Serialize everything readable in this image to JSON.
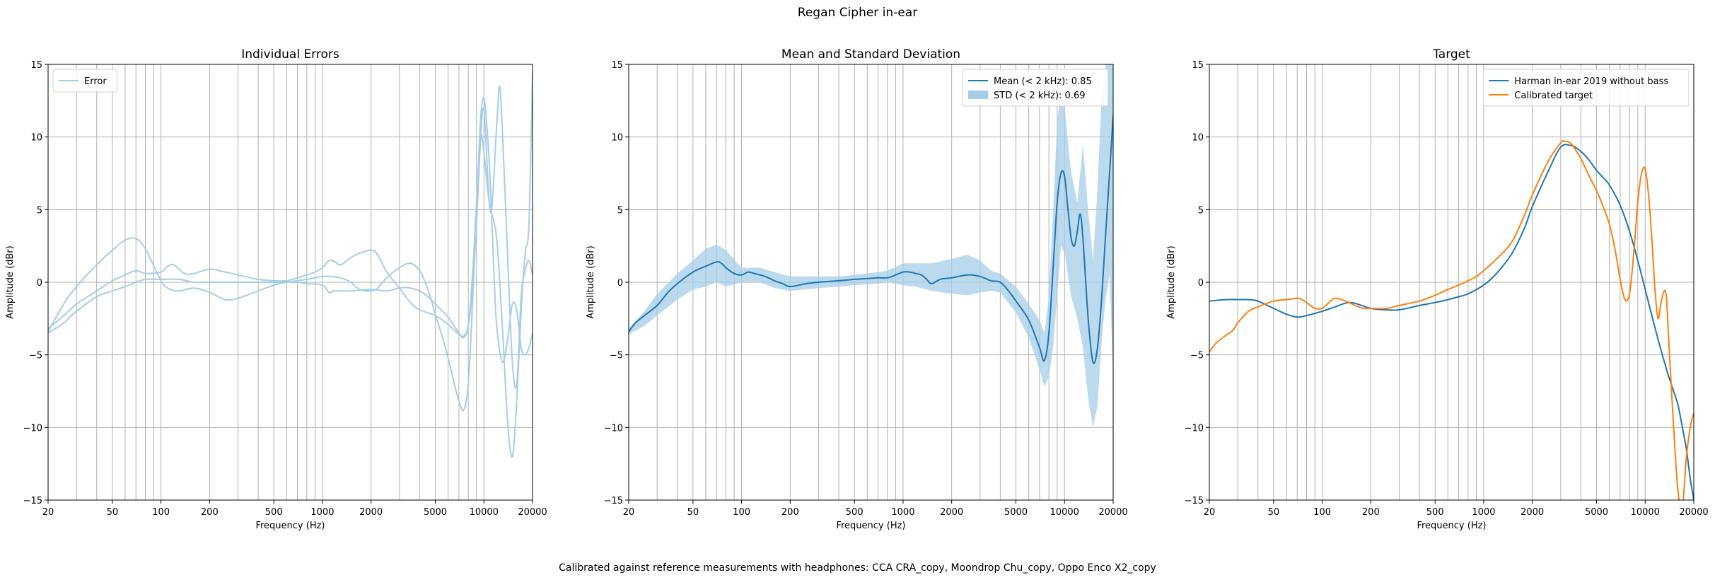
{
  "figure": {
    "title": "Regan Cipher in-ear",
    "footer": "Calibrated against reference measurements with headphones: CCA CRA_copy, Moondrop Chu_copy, Oppo Enco X2_copy"
  },
  "chart_data": [
    {
      "type": "line",
      "title": "Individual Errors",
      "xlabel": "Frequency (Hz)",
      "ylabel": "Amplitude (dBr)",
      "xscale": "log",
      "xlim": [
        20,
        20000
      ],
      "ylim": [
        -15,
        15
      ],
      "xticks": [
        20,
        50,
        100,
        200,
        500,
        1000,
        2000,
        5000,
        10000,
        20000
      ],
      "yticks": [
        -15,
        -10,
        -5,
        0,
        5,
        10,
        15
      ],
      "ytick_labels": [
        "−15",
        "−10",
        "−5",
        "0",
        "5",
        "10",
        "15"
      ],
      "grid": true,
      "legend": {
        "position": "top-left",
        "entries": [
          {
            "label": "Error",
            "color": "#a6cde8",
            "kind": "line"
          }
        ]
      },
      "series": [
        {
          "color": "#a6cde8",
          "x": [
            20,
            25,
            30,
            40,
            50,
            60,
            70,
            80,
            100,
            110,
            130,
            160,
            200,
            250,
            300,
            400,
            500,
            600,
            700,
            800,
            900,
            1000,
            1100,
            1300,
            1500,
            1700,
            2000,
            2200,
            2500,
            3000,
            3500,
            4000,
            4500,
            5000,
            5500,
            6000,
            6500,
            7000,
            7500,
            8000,
            8500,
            9000,
            9500,
            10000,
            10500,
            11000,
            11500,
            12000,
            13000,
            14000,
            15000,
            16000,
            17000,
            18000,
            19000,
            20000
          ],
          "y": [
            -3.4,
            -1.5,
            -0.3,
            1.2,
            2.2,
            2.9,
            3.0,
            2.3,
            0.1,
            -0.4,
            -0.6,
            -0.4,
            -0.7,
            -1.2,
            -1.1,
            -0.6,
            -0.2,
            0.0,
            0.1,
            0.2,
            0.3,
            0.4,
            0.4,
            0.3,
            0.0,
            -0.5,
            -0.6,
            -0.4,
            0.3,
            1.0,
            1.3,
            0.8,
            -0.5,
            -2.2,
            -3.7,
            -5.2,
            -6.8,
            -8.2,
            -8.8,
            -7.0,
            -1.5,
            4.8,
            11.0,
            12.7,
            10.3,
            6.4,
            1.0,
            -3.0,
            -5.5,
            -4.0,
            -1.5,
            -2.0,
            -4.5,
            -5.0,
            -4.5,
            -3.5
          ]
        },
        {
          "color": "#a6cde8",
          "x": [
            20,
            25,
            30,
            40,
            50,
            60,
            70,
            80,
            100,
            110,
            120,
            140,
            160,
            200,
            250,
            300,
            400,
            500,
            600,
            700,
            800,
            900,
            1000,
            1100,
            1200,
            1300,
            1500,
            1700,
            2000,
            2200,
            2500,
            3000,
            3500,
            4000,
            5000,
            6000,
            7000,
            7500,
            8000,
            8500,
            9000,
            9500,
            10000,
            11000,
            12000,
            12500,
            13000,
            14000,
            15000,
            16000,
            17000,
            18000,
            19000,
            20000
          ],
          "y": [
            -3.2,
            -2.3,
            -1.5,
            -0.6,
            0.1,
            0.5,
            0.8,
            0.6,
            0.7,
            1.1,
            1.2,
            0.6,
            0.6,
            0.9,
            0.7,
            0.5,
            0.2,
            0.1,
            0.1,
            0.3,
            0.5,
            0.7,
            1.0,
            1.5,
            1.4,
            1.2,
            1.7,
            2.0,
            2.2,
            1.9,
            0.7,
            -0.4,
            -1.4,
            -1.9,
            -2.3,
            -2.9,
            -3.6,
            -3.7,
            -3.0,
            -0.5,
            4.0,
            9.5,
            11.8,
            4.8,
            10.8,
            13.5,
            10.5,
            2.0,
            -5.5,
            -7.0,
            -1.0,
            0.8,
            1.5,
            0.5
          ]
        },
        {
          "color": "#a6cde8",
          "x": [
            20,
            25,
            30,
            40,
            50,
            60,
            70,
            80,
            100,
            130,
            160,
            200,
            300,
            400,
            500,
            600,
            700,
            800,
            1000,
            1100,
            1200,
            1500,
            2000,
            2500,
            3000,
            3500,
            4000,
            4500,
            5000,
            6000,
            7000,
            7500,
            8000,
            8500,
            9000,
            9500,
            10000,
            10500,
            11000,
            12000,
            13000,
            14000,
            15000,
            16000,
            17000,
            18000,
            19000,
            20000
          ],
          "y": [
            -3.5,
            -2.8,
            -2.0,
            -1.0,
            -0.6,
            -0.3,
            0.0,
            0.2,
            0.2,
            0.2,
            0.0,
            0.0,
            0.0,
            0.0,
            0.0,
            0.0,
            0.0,
            -0.1,
            -0.2,
            -0.7,
            -0.6,
            -0.6,
            -0.5,
            -0.6,
            -0.4,
            -0.4,
            -0.6,
            -1.0,
            -1.5,
            -2.4,
            -3.5,
            -3.8,
            -3.0,
            0.5,
            5.5,
            10.0,
            9.0,
            6.5,
            5.0,
            3.0,
            -3.0,
            -9.5,
            -12.0,
            -8.0,
            -2.0,
            2.0,
            4.0,
            14.5
          ]
        }
      ]
    },
    {
      "type": "line",
      "title": "Mean and Standard Deviation",
      "xlabel": "Frequency (Hz)",
      "ylabel": "Amplitude (dBr)",
      "xscale": "log",
      "xlim": [
        20,
        20000
      ],
      "ylim": [
        -15,
        15
      ],
      "xticks": [
        20,
        50,
        100,
        200,
        500,
        1000,
        2000,
        5000,
        10000,
        20000
      ],
      "yticks": [
        -15,
        -10,
        -5,
        0,
        5,
        10,
        15
      ],
      "ytick_labels": [
        "−15",
        "−10",
        "−5",
        "0",
        "5",
        "10",
        "15"
      ],
      "grid": true,
      "legend": {
        "position": "top-right",
        "entries": [
          {
            "label": "Mean (< 2 kHz): 0.85",
            "color": "#1f77b4",
            "kind": "line"
          },
          {
            "label": "STD (< 2 kHz): 0.69",
            "color": "#a6cde8",
            "kind": "patch"
          }
        ]
      },
      "series": [
        {
          "name": "Mean (< 2 kHz): 0.85",
          "color": "#1f77b4",
          "x": [
            20,
            22,
            25,
            30,
            35,
            40,
            50,
            60,
            70,
            75,
            80,
            90,
            100,
            110,
            120,
            140,
            160,
            180,
            200,
            250,
            300,
            400,
            500,
            600,
            700,
            800,
            900,
            1000,
            1100,
            1200,
            1300,
            1400,
            1500,
            1700,
            2000,
            2500,
            3000,
            3500,
            4000,
            4500,
            5000,
            6000,
            7000,
            7500,
            8000,
            8500,
            9000,
            9500,
            10000,
            10500,
            11000,
            11500,
            12000,
            12500,
            13000,
            14000,
            15000,
            16000,
            17000,
            18000,
            19000,
            20000
          ],
          "y": [
            -3.4,
            -2.8,
            -2.3,
            -1.6,
            -0.7,
            -0.1,
            0.7,
            1.1,
            1.4,
            1.3,
            1.0,
            0.6,
            0.5,
            0.7,
            0.6,
            0.4,
            0.1,
            -0.1,
            -0.3,
            -0.1,
            0.0,
            0.1,
            0.2,
            0.25,
            0.3,
            0.3,
            0.5,
            0.7,
            0.7,
            0.6,
            0.5,
            0.2,
            -0.1,
            0.2,
            0.3,
            0.5,
            0.4,
            0.1,
            0.0,
            -0.6,
            -1.3,
            -2.6,
            -4.5,
            -5.4,
            -3.5,
            1.0,
            5.5,
            7.5,
            7.3,
            5.0,
            3.0,
            2.5,
            3.5,
            4.7,
            3.0,
            -2.5,
            -5.5,
            -4.5,
            -1.0,
            3.5,
            7.5,
            11.5
          ]
        },
        {
          "name": "STD (< 2 kHz): 0.69",
          "type": "band",
          "color": "#a6cde8",
          "x": [
            20,
            25,
            30,
            40,
            50,
            60,
            70,
            80,
            100,
            130,
            160,
            200,
            300,
            400,
            500,
            700,
            800,
            1000,
            1200,
            1500,
            2000,
            2500,
            3000,
            3500,
            4000,
            5000,
            6000,
            7000,
            7500,
            8000,
            8500,
            9000,
            9500,
            10000,
            11000,
            12000,
            13000,
            14000,
            15000,
            16000,
            17000,
            18000,
            19000,
            20000
          ],
          "lower": [
            -3.6,
            -3.0,
            -2.3,
            -1.2,
            -0.5,
            -0.3,
            0.0,
            -0.3,
            0.0,
            0.0,
            -0.4,
            -0.6,
            -0.4,
            -0.3,
            -0.2,
            -0.1,
            0.0,
            -0.2,
            -0.3,
            -0.6,
            -0.8,
            -0.9,
            -0.7,
            -0.6,
            -0.7,
            -2.1,
            -3.8,
            -6.0,
            -7.2,
            -6.5,
            -4.5,
            -1.0,
            2.5,
            2.0,
            -1.0,
            -2.5,
            -4.5,
            -8.0,
            -10.0,
            -8.5,
            -4.0,
            -1.0,
            0.5,
            -6.5
          ],
          "upper": [
            -3.2,
            -2.0,
            -0.8,
            0.6,
            1.5,
            2.3,
            2.6,
            2.2,
            1.0,
            1.0,
            0.7,
            0.4,
            0.4,
            0.4,
            0.5,
            0.7,
            0.8,
            1.3,
            1.3,
            1.3,
            1.6,
            1.9,
            1.5,
            0.8,
            0.6,
            -0.3,
            -1.5,
            -2.6,
            -3.5,
            -1.0,
            5.0,
            11.0,
            13.5,
            12.0,
            7.5,
            5.5,
            9.5,
            5.0,
            1.5,
            6.5,
            13.0,
            15.0,
            15.0,
            15.0
          ]
        }
      ]
    },
    {
      "type": "line",
      "title": "Target",
      "xlabel": "Frequency (Hz)",
      "ylabel": "Amplitude (dBr)",
      "xscale": "log",
      "xlim": [
        20,
        20000
      ],
      "ylim": [
        -15,
        15
      ],
      "xticks": [
        20,
        50,
        100,
        200,
        500,
        1000,
        2000,
        5000,
        10000,
        20000
      ],
      "yticks": [
        -15,
        -10,
        -5,
        0,
        5,
        10,
        15
      ],
      "ytick_labels": [
        "−15",
        "−10",
        "−5",
        "0",
        "5",
        "10",
        "15"
      ],
      "grid": true,
      "legend": {
        "position": "top-right",
        "entries": [
          {
            "label": "Harman in-ear 2019 without bass",
            "color": "#1f77b4",
            "kind": "line"
          },
          {
            "label": "Calibrated target",
            "color": "#ff7f0e",
            "kind": "line"
          }
        ]
      },
      "series": [
        {
          "name": "Harman in-ear 2019 without bass",
          "color": "#1f77b4",
          "x": [
            20,
            25,
            30,
            35,
            40,
            50,
            60,
            70,
            80,
            100,
            120,
            150,
            200,
            250,
            300,
            400,
            500,
            600,
            700,
            800,
            1000,
            1200,
            1500,
            1800,
            2000,
            2500,
            3000,
            3500,
            4000,
            4500,
            5000,
            5500,
            6000,
            7000,
            8000,
            9000,
            10000,
            11000,
            12000,
            13000,
            14000,
            15000,
            16000,
            17000,
            18000,
            19000,
            20000
          ],
          "y": [
            -1.3,
            -1.2,
            -1.2,
            -1.2,
            -1.3,
            -1.8,
            -2.2,
            -2.4,
            -2.3,
            -2.0,
            -1.7,
            -1.4,
            -1.8,
            -1.9,
            -1.9,
            -1.6,
            -1.4,
            -1.2,
            -1.0,
            -0.8,
            -0.2,
            0.6,
            2.0,
            3.8,
            5.2,
            7.6,
            9.3,
            9.4,
            9.0,
            8.4,
            7.7,
            7.2,
            6.7,
            5.3,
            3.5,
            1.5,
            -0.5,
            -2.3,
            -3.9,
            -5.3,
            -6.5,
            -7.5,
            -8.5,
            -10.0,
            -11.5,
            -13.5,
            -15.0
          ]
        },
        {
          "name": "Calibrated target",
          "color": "#ff7f0e",
          "x": [
            20,
            22,
            25,
            28,
            30,
            35,
            40,
            50,
            60,
            70,
            75,
            80,
            90,
            100,
            110,
            120,
            140,
            160,
            180,
            200,
            250,
            300,
            400,
            500,
            600,
            700,
            800,
            900,
            1000,
            1200,
            1500,
            1800,
            2000,
            2500,
            3000,
            3200,
            3500,
            4000,
            4500,
            5000,
            5500,
            6000,
            6500,
            7000,
            7500,
            8000,
            8500,
            9000,
            9500,
            10000,
            10500,
            11000,
            11500,
            12000,
            12500,
            13000,
            13500,
            14000,
            15000,
            16000,
            17000,
            18000,
            19000,
            20000
          ],
          "y": [
            -4.8,
            -4.2,
            -3.7,
            -3.3,
            -2.8,
            -2.0,
            -1.7,
            -1.3,
            -1.2,
            -1.1,
            -1.2,
            -1.4,
            -1.8,
            -1.8,
            -1.4,
            -1.1,
            -1.3,
            -1.6,
            -1.8,
            -1.8,
            -1.8,
            -1.6,
            -1.3,
            -0.9,
            -0.5,
            -0.2,
            0.1,
            0.4,
            0.8,
            1.6,
            2.8,
            4.7,
            6.0,
            8.3,
            9.6,
            9.7,
            9.5,
            8.5,
            7.3,
            6.3,
            5.2,
            4.0,
            2.3,
            0.2,
            -1.2,
            -0.8,
            2.0,
            5.5,
            7.5,
            7.8,
            6.0,
            3.0,
            -0.5,
            -2.5,
            -1.5,
            -0.7,
            -0.9,
            -4.0,
            -10.0,
            -14.5,
            -15.5,
            -12.0,
            -10.0,
            -9.0
          ]
        }
      ]
    }
  ]
}
